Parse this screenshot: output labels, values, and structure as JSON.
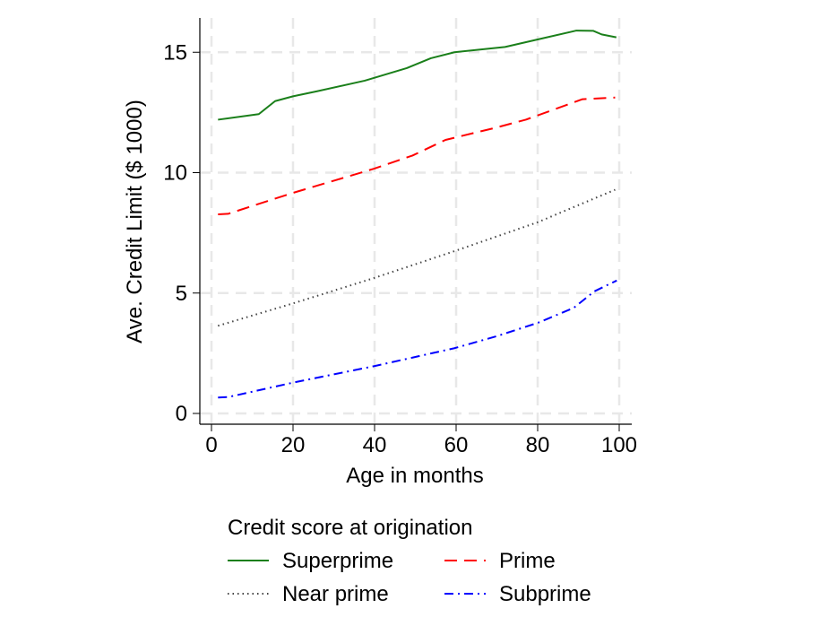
{
  "chart_data": {
    "type": "line",
    "title": "",
    "xlabel": "Age in months",
    "ylabel": "Ave. Credit Limit ($ 1000)",
    "xlim": [
      0,
      100
    ],
    "ylim": [
      0,
      16.5
    ],
    "xticks": [
      0,
      20,
      40,
      60,
      80,
      100
    ],
    "yticks": [
      0,
      5,
      10,
      15
    ],
    "grid": true,
    "legend": {
      "title": "Credit score at origination",
      "placement": "bottom"
    },
    "series": [
      {
        "name": "Superprime",
        "color": "#1a7f1a",
        "style": "solid",
        "x": [
          1.6,
          11.6,
          15.6,
          20,
          25.9,
          37.6,
          47.9,
          53.8,
          59.6,
          72,
          80,
          89.5,
          93.6,
          95.7,
          99.3
        ],
        "y": [
          12.2,
          12.43,
          12.97,
          13.17,
          13.38,
          13.82,
          14.34,
          14.75,
          15.0,
          15.22,
          15.53,
          15.9,
          15.89,
          15.74,
          15.62
        ]
      },
      {
        "name": "Prime",
        "color": "#ff0000",
        "style": "dash",
        "x": [
          1.6,
          4.1,
          11,
          20,
          39.8,
          49.3,
          57.4,
          69.8,
          77.1,
          91,
          99
        ],
        "y": [
          8.27,
          8.29,
          8.67,
          9.16,
          10.16,
          10.71,
          11.36,
          11.87,
          12.2,
          13.05,
          13.12
        ]
      },
      {
        "name": "Near prime",
        "color": "#444444",
        "style": "dot",
        "x": [
          1.6,
          20,
          39.8,
          59.6,
          80,
          99
        ],
        "y": [
          3.64,
          4.57,
          5.62,
          6.74,
          7.94,
          9.29
        ]
      },
      {
        "name": "Subprime",
        "color": "#0000ff",
        "style": "dashdot",
        "x": [
          1.6,
          4.1,
          20,
          39.8,
          59.6,
          69.8,
          80,
          88.8,
          93.9,
          99.4
        ],
        "y": [
          0.66,
          0.68,
          1.28,
          1.96,
          2.71,
          3.2,
          3.76,
          4.38,
          5.07,
          5.52
        ]
      }
    ]
  }
}
